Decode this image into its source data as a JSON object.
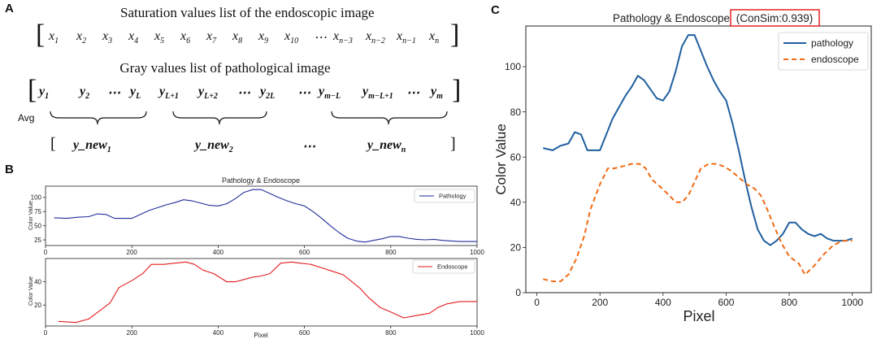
{
  "panel_a": {
    "letter": "A",
    "sat_title": "Saturation values list of the endoscopic image",
    "sat_items": [
      {
        "base": "x",
        "sub": "1"
      },
      {
        "base": "x",
        "sub": "2"
      },
      {
        "base": "x",
        "sub": "3"
      },
      {
        "base": "x",
        "sub": "4"
      },
      {
        "base": "x",
        "sub": "5"
      },
      {
        "base": "x",
        "sub": "6"
      },
      {
        "base": "x",
        "sub": "7"
      },
      {
        "base": "x",
        "sub": "8"
      },
      {
        "base": "x",
        "sub": "9"
      },
      {
        "base": "x",
        "sub": "10"
      },
      {
        "base": "⋯",
        "sub": ""
      },
      {
        "base": "x",
        "sub": "n−3"
      },
      {
        "base": "x",
        "sub": "n−2"
      },
      {
        "base": "x",
        "sub": "n−1"
      },
      {
        "base": "x",
        "sub": "n"
      }
    ],
    "gray_title": "Gray values list of pathological image",
    "gray_items": [
      {
        "base": "y",
        "sub": "1"
      },
      {
        "base": "y",
        "sub": "2"
      },
      {
        "base": "⋯",
        "sub": ""
      },
      {
        "base": "y",
        "sub": "L"
      },
      {
        "base": "y",
        "sub": "L+1"
      },
      {
        "base": "y",
        "sub": "L+2"
      },
      {
        "base": "⋯",
        "sub": ""
      },
      {
        "base": "y",
        "sub": "2L"
      },
      {
        "base": "⋯",
        "sub": ""
      },
      {
        "base": "y",
        "sub": "m−L"
      },
      {
        "base": "y",
        "sub": "m−L+1"
      },
      {
        "base": "⋯",
        "sub": ""
      },
      {
        "base": "y",
        "sub": "m"
      }
    ],
    "avg_label": "Avg",
    "new_items": [
      {
        "base": "y_new",
        "sub": "1"
      },
      {
        "base": "y_new",
        "sub": "2"
      },
      {
        "base": "⋯",
        "sub": ""
      },
      {
        "base": "y_new",
        "sub": "n"
      }
    ]
  },
  "chart_data": [
    {
      "id": "B-top",
      "panel_letter": "B",
      "type": "line",
      "title": "Pathology & Endoscope",
      "xlabel": "",
      "ylabel": "Color Value",
      "xlim": [
        0,
        1000
      ],
      "ylim": [
        15,
        120
      ],
      "xticks": [
        0,
        200,
        400,
        600,
        800,
        1000
      ],
      "yticks": [
        25,
        50,
        75,
        100
      ],
      "legend_position": "top-right",
      "series": [
        {
          "name": "Pathology",
          "color": "#1f2d9a",
          "x": [
            20,
            50,
            75,
            100,
            120,
            140,
            160,
            175,
            200,
            220,
            240,
            260,
            280,
            300,
            320,
            340,
            360,
            380,
            400,
            420,
            440,
            460,
            480,
            500,
            520,
            540,
            560,
            580,
            600,
            620,
            640,
            660,
            680,
            700,
            720,
            740,
            760,
            780,
            800,
            820,
            840,
            860,
            880,
            900,
            920,
            940,
            960,
            980,
            1000
          ],
          "y": [
            64,
            63,
            65,
            66,
            71,
            70,
            63,
            63,
            63,
            70,
            77,
            82,
            87,
            91,
            96,
            94,
            90,
            86,
            85,
            89,
            98,
            109,
            114,
            114,
            107,
            100,
            94,
            89,
            85,
            75,
            63,
            50,
            38,
            28,
            23,
            21,
            24,
            27,
            31,
            31,
            28,
            26,
            25,
            26,
            24,
            23,
            22,
            22,
            22
          ]
        }
      ]
    },
    {
      "id": "B-bottom",
      "type": "line",
      "title": "",
      "xlabel": "Pixel",
      "ylabel": "Color Value",
      "xlim": [
        0,
        1000
      ],
      "ylim": [
        2,
        60
      ],
      "xticks": [
        0,
        200,
        400,
        600,
        800,
        1000
      ],
      "yticks": [
        20,
        40
      ],
      "legend_position": "top-right",
      "series": [
        {
          "name": "Endoscope",
          "color": "#e31a1c",
          "x": [
            30,
            70,
            100,
            125,
            150,
            170,
            200,
            225,
            245,
            275,
            300,
            325,
            345,
            365,
            390,
            420,
            440,
            460,
            480,
            500,
            520,
            545,
            570,
            590,
            615,
            640,
            665,
            690,
            710,
            730,
            750,
            775,
            800,
            830,
            860,
            890,
            910,
            930,
            960,
            1000
          ],
          "y": [
            6,
            5,
            8,
            15,
            22,
            35,
            41,
            47,
            55,
            55,
            56,
            57,
            55,
            50,
            47,
            40,
            40,
            42,
            44,
            45,
            47,
            56,
            57,
            56,
            55,
            52,
            49,
            46,
            40,
            34,
            26,
            18,
            14,
            9,
            11,
            13,
            18,
            21,
            23,
            23
          ]
        }
      ]
    },
    {
      "id": "C",
      "panel_letter": "C",
      "type": "line",
      "title": "Pathology & Endoscope",
      "title_highlight": "(ConSim:0.939)",
      "xlabel": "Pixel",
      "ylabel": "Color Value",
      "xlim": [
        -35,
        1060
      ],
      "ylim": [
        0,
        118
      ],
      "xticks": [
        0,
        200,
        400,
        600,
        800,
        1000
      ],
      "yticks": [
        0,
        20,
        40,
        60,
        80,
        100
      ],
      "legend_position": "top-right",
      "series": [
        {
          "name": "pathology",
          "color": "#1f5f9f",
          "dash": "",
          "x": [
            20,
            50,
            75,
            100,
            120,
            140,
            160,
            175,
            200,
            220,
            240,
            260,
            280,
            300,
            320,
            340,
            360,
            380,
            400,
            420,
            440,
            460,
            480,
            500,
            520,
            540,
            560,
            580,
            600,
            620,
            640,
            660,
            680,
            700,
            720,
            740,
            760,
            780,
            800,
            820,
            840,
            860,
            880,
            900,
            920,
            940,
            960,
            980,
            1000
          ],
          "y": [
            64,
            63,
            65,
            66,
            71,
            70,
            63,
            63,
            63,
            70,
            77,
            82,
            87,
            91,
            96,
            94,
            90,
            86,
            85,
            89,
            98,
            109,
            114,
            114,
            107,
            100,
            94,
            89,
            85,
            75,
            63,
            50,
            38,
            28,
            23,
            21,
            23,
            26,
            31,
            31,
            28,
            26,
            25,
            26,
            24,
            23,
            23,
            23,
            24
          ]
        },
        {
          "name": "endoscope",
          "color": "#f06a14",
          "dash": "6,4",
          "x": [
            20,
            50,
            75,
            100,
            125,
            150,
            170,
            200,
            225,
            245,
            275,
            300,
            325,
            345,
            365,
            390,
            420,
            440,
            460,
            480,
            500,
            520,
            545,
            570,
            590,
            615,
            640,
            665,
            690,
            710,
            730,
            750,
            775,
            800,
            830,
            850,
            880,
            910,
            940,
            970,
            1000
          ],
          "y": [
            6,
            5,
            5,
            8,
            15,
            25,
            37,
            48,
            55,
            55,
            56,
            57,
            57,
            55,
            50,
            47,
            43,
            40,
            40,
            43,
            49,
            55,
            57,
            57,
            56,
            54,
            51,
            48,
            46,
            43,
            37,
            30,
            22,
            16,
            13,
            8,
            12,
            17,
            21,
            23,
            23
          ]
        }
      ]
    }
  ]
}
